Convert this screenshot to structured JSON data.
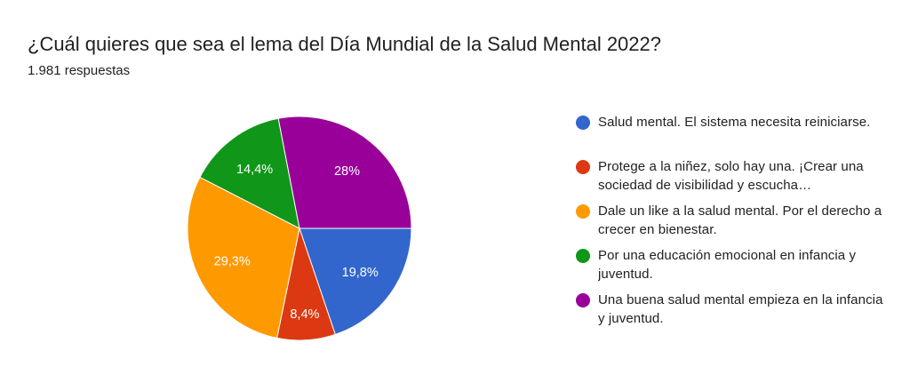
{
  "question": {
    "title": "¿Cuál quieres que sea el lema del Día Mundial de la Salud Mental 2022?",
    "responses": "1.981 respuestas"
  },
  "chart_data": {
    "type": "pie",
    "title": "¿Cuál quieres que sea el lema del Día Mundial de la Salud Mental 2022?",
    "legend_position": "right",
    "slices": [
      {
        "label": "Salud mental. El sistema necesita reiniciarse.",
        "value": 19.8,
        "value_label": "19,8%",
        "color": "#3366cc"
      },
      {
        "label": "Protege a la niñez, solo hay una. ¡Crear una sociedad de visibilidad y escucha…",
        "value": 8.4,
        "value_label": "8,4%",
        "color": "#dc3912"
      },
      {
        "label": "Dale un like a la salud mental. Por el derecho a crecer en bienestar.",
        "value": 29.3,
        "value_label": "29,3%",
        "color": "#ff9900"
      },
      {
        "label": "Por una educación emocional en infancia y juventud.",
        "value": 14.4,
        "value_label": "14,4%",
        "color": "#109618"
      },
      {
        "label": "Una buena salud mental empieza en la infancia y juventud.",
        "value": 28.0,
        "value_label": "28%",
        "color": "#990099"
      }
    ]
  }
}
